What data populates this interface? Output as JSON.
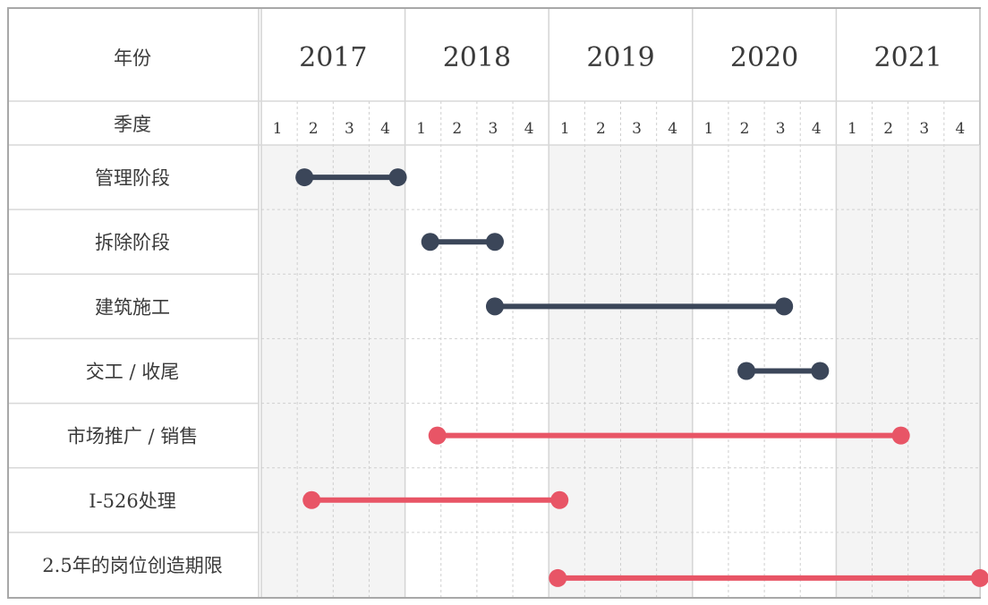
{
  "header": {
    "year_label": "年份",
    "quarter_label": "季度"
  },
  "chart_data": {
    "type": "gantt",
    "years": [
      "2017",
      "2018",
      "2019",
      "2020",
      "2021"
    ],
    "quarters": [
      "1",
      "2",
      "3",
      "4"
    ],
    "tasks": [
      {
        "label": "管理阶段",
        "start": 1.2,
        "end": 3.8,
        "color": "#3b4659"
      },
      {
        "label": "拆除阶段",
        "start": 4.7,
        "end": 6.5,
        "color": "#3b4659"
      },
      {
        "label": "建筑施工",
        "start": 6.5,
        "end": 14.55,
        "color": "#3b4659"
      },
      {
        "label": "交工 / 收尾",
        "start": 13.5,
        "end": 15.55,
        "color": "#3b4659"
      },
      {
        "label": "市场推广 / 销售",
        "start": 4.9,
        "end": 17.8,
        "color": "#e85566"
      },
      {
        "label": "I-526处理",
        "start": 1.4,
        "end": 8.3,
        "color": "#e85566"
      },
      {
        "label": "2.5年的岗位创造期限",
        "start": 8.25,
        "end": 20.0,
        "color": "#e85566"
      }
    ]
  }
}
